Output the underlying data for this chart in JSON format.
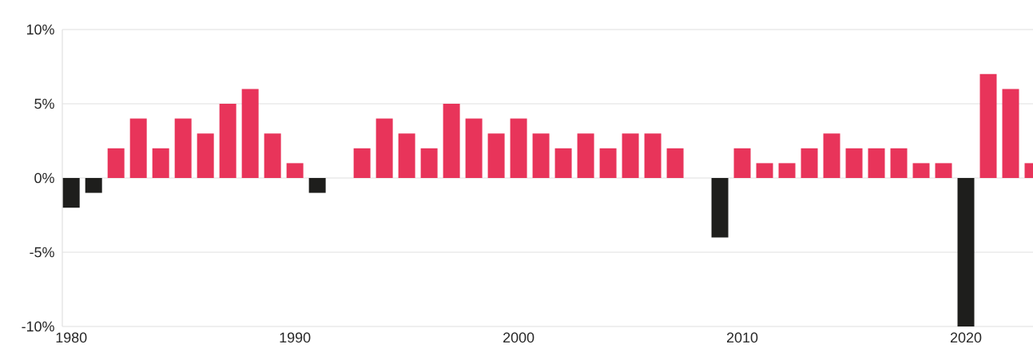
{
  "chart_data": {
    "type": "bar",
    "x": [
      1980,
      1981,
      1982,
      1983,
      1984,
      1985,
      1986,
      1987,
      1988,
      1989,
      1990,
      1991,
      1992,
      1993,
      1994,
      1995,
      1996,
      1997,
      1998,
      1999,
      2000,
      2001,
      2002,
      2003,
      2004,
      2005,
      2006,
      2007,
      2008,
      2009,
      2010,
      2011,
      2012,
      2013,
      2014,
      2015,
      2016,
      2017,
      2018,
      2019,
      2020,
      2021,
      2022,
      2023
    ],
    "values": [
      -2,
      -1,
      2,
      4,
      2,
      4,
      3,
      5,
      6,
      3,
      1,
      -1,
      0,
      2,
      4,
      3,
      2,
      5,
      4,
      3,
      4,
      3,
      2,
      3,
      2,
      3,
      3,
      2,
      0,
      -4,
      2,
      1,
      1,
      2,
      3,
      2,
      2,
      2,
      1,
      1,
      -10,
      7,
      6,
      1
    ],
    "colors": [
      "#1e1e1c",
      "#1e1e1c",
      "#e8345a",
      "#e8345a",
      "#e8345a",
      "#e8345a",
      "#e8345a",
      "#e8345a",
      "#e8345a",
      "#e8345a",
      "#e8345a",
      "#1e1e1c",
      "#e8345a",
      "#e8345a",
      "#e8345a",
      "#e8345a",
      "#e8345a",
      "#e8345a",
      "#e8345a",
      "#e8345a",
      "#e8345a",
      "#e8345a",
      "#e8345a",
      "#e8345a",
      "#e8345a",
      "#e8345a",
      "#e8345a",
      "#e8345a",
      "#e8345a",
      "#1e1e1c",
      "#e8345a",
      "#e8345a",
      "#e8345a",
      "#e8345a",
      "#e8345a",
      "#e8345a",
      "#e8345a",
      "#e8345a",
      "#e8345a",
      "#e8345a",
      "#1e1e1c",
      "#e8345a",
      "#e8345a",
      "#e8345a"
    ],
    "xlim": [
      1979.6,
      2023
    ],
    "xticks": [
      1980,
      1990,
      2000,
      2010,
      2020
    ],
    "ylim": [
      -10,
      10
    ],
    "yticks": [
      {
        "value": -10,
        "label": "-10%"
      },
      {
        "value": -5,
        "label": "-5%"
      },
      {
        "value": 0,
        "label": "0%"
      },
      {
        "value": 5,
        "label": "5%"
      },
      {
        "value": 10,
        "label": "10%"
      }
    ],
    "grid": "y"
  }
}
